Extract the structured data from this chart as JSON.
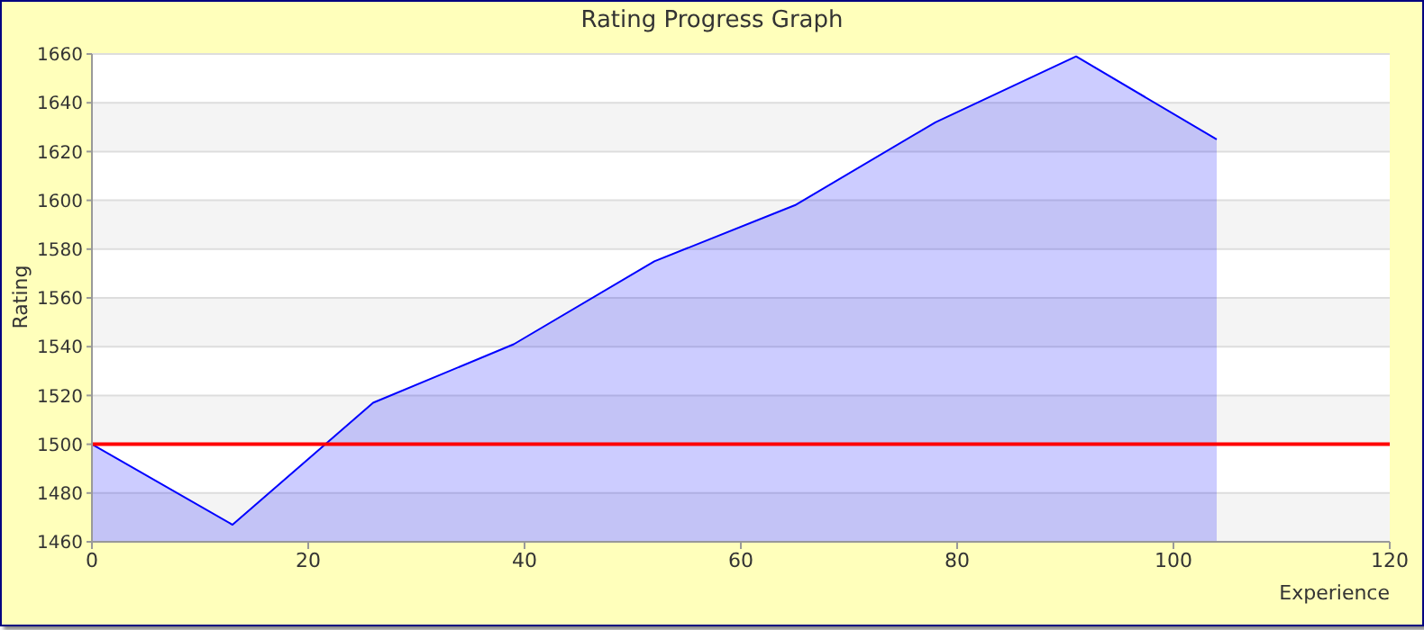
{
  "chart_data": {
    "type": "area",
    "title": "Rating Progress Graph",
    "xlabel": "Experience",
    "ylabel": "Rating",
    "x": [
      0,
      13,
      26,
      39,
      52,
      65,
      78,
      91,
      104
    ],
    "series": [
      {
        "color": "#0000ff",
        "values": [
          1500,
          1467,
          1517,
          1541,
          1575,
          1598,
          1632,
          1659,
          1625
        ]
      }
    ],
    "xlim": [
      0,
      120
    ],
    "xticks": [
      0,
      20,
      40,
      60,
      80,
      100,
      120
    ],
    "ylim": [
      1460,
      1660
    ],
    "yticks": [
      1460,
      1480,
      1500,
      1520,
      1540,
      1560,
      1580,
      1600,
      1620,
      1640,
      1660
    ],
    "grid": "y",
    "marker": "none",
    "ref_lines": [
      {
        "axis": "y",
        "value": 1500,
        "color": "#ff0000"
      }
    ]
  }
}
